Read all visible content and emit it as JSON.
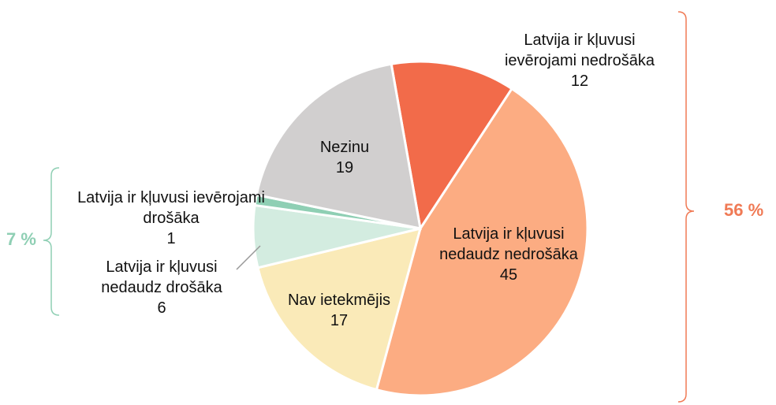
{
  "chart_data": {
    "type": "pie",
    "categories": [
      "Latvija ir kļuvusi ievērojami nedrošāka",
      "Latvija ir kļuvusi nedaudz nedrošāka",
      "Nav ietekmējis",
      "Latvija ir kļuvusi nedaudz drošāka",
      "Latvija ir kļuvusi ievērojami drošāka",
      "Nezinu"
    ],
    "values": [
      12,
      45,
      17,
      6,
      1,
      19
    ],
    "colors": [
      "#f26b4a",
      "#fcac82",
      "#faeab8",
      "#d3ece0",
      "#8fcfb4",
      "#d1cfcf"
    ],
    "annotations": [
      {
        "value": 7,
        "label": "7 %",
        "color": "#8fcfb4"
      },
      {
        "value": 56,
        "label": "56 %",
        "color": "#f07a55"
      }
    ]
  }
}
